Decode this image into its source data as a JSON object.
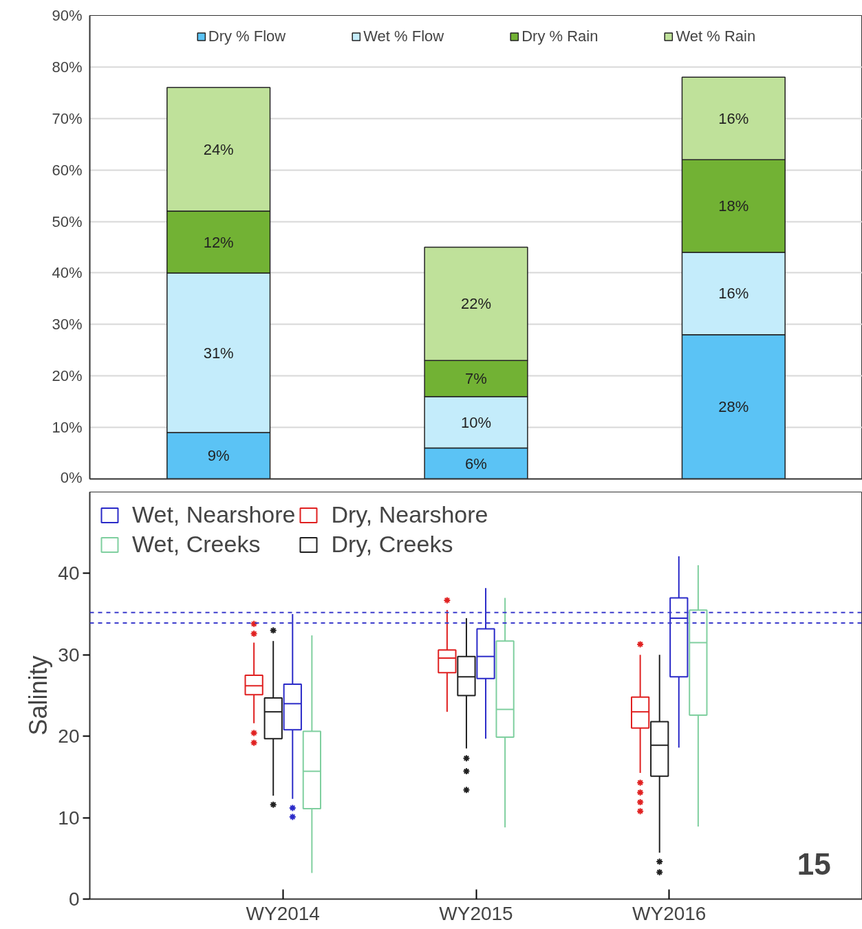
{
  "chart_data": [
    {
      "type": "bar",
      "stacked": true,
      "categories": [
        null,
        null,
        null
      ],
      "series": [
        {
          "name": "Dry % Flow",
          "color": "#5bc3f5",
          "values": [
            9,
            6,
            28
          ],
          "value_labels": [
            "9%",
            "6%",
            "28%"
          ]
        },
        {
          "name": "Wet % Flow",
          "color": "#c4ecfb",
          "values": [
            31,
            10,
            16
          ],
          "value_labels": [
            "31%",
            "10%",
            "16%"
          ]
        },
        {
          "name": "Dry % Rain",
          "color": "#72b234",
          "values": [
            12,
            7,
            18
          ],
          "value_labels": [
            "12%",
            "7%",
            "18%"
          ]
        },
        {
          "name": "Wet % Rain",
          "color": "#bfe19a",
          "values": [
            24,
            22,
            16
          ],
          "value_labels": [
            "24%",
            "22%",
            "16%"
          ]
        }
      ],
      "ylim": [
        0,
        90
      ],
      "yticks": [
        {
          "value": 0,
          "label": "0%"
        },
        {
          "value": 10,
          "label": "10%"
        },
        {
          "value": 20,
          "label": "20%"
        },
        {
          "value": 30,
          "label": "30%"
        },
        {
          "value": 40,
          "label": "40%"
        },
        {
          "value": 50,
          "label": "50%"
        },
        {
          "value": 60,
          "label": "60%"
        },
        {
          "value": 70,
          "label": "70%"
        },
        {
          "value": 80,
          "label": "80%"
        },
        {
          "value": 90,
          "label": "90%"
        }
      ],
      "grid": "y",
      "legend": "top",
      "tick_labels": "y"
    },
    {
      "type": "box",
      "ylabel": "Salinity",
      "categories": [
        "WY2014",
        "WY2015",
        "WY2016"
      ],
      "series": [
        {
          "name": "Dry, Nearshore",
          "color": "#e02020",
          "boxes": [
            {
              "low": 21.6,
              "q1": 25.1,
              "median": 26.2,
              "q3": 27.5,
              "high": 31.5,
              "outliers": [
                32.6,
                33.8,
                20.4,
                19.2
              ]
            },
            {
              "low": 23.0,
              "q1": 27.8,
              "median": 29.6,
              "q3": 30.6,
              "high": 35.5,
              "outliers": [
                36.7
              ]
            },
            {
              "low": 15.5,
              "q1": 21.0,
              "median": 23.0,
              "q3": 24.8,
              "high": 30.0,
              "outliers": [
                31.3,
                14.3,
                13.1,
                11.9,
                10.8
              ]
            }
          ]
        },
        {
          "name": "Dry, Creeks",
          "color": "#202020",
          "boxes": [
            {
              "low": 12.7,
              "q1": 19.7,
              "median": 23.0,
              "q3": 24.7,
              "high": 31.7,
              "outliers": [
                33.0,
                11.6
              ]
            },
            {
              "low": 18.5,
              "q1": 25.0,
              "median": 27.3,
              "q3": 29.8,
              "high": 34.5,
              "outliers": [
                17.3,
                15.7,
                13.4
              ]
            },
            {
              "low": 5.7,
              "q1": 15.1,
              "median": 18.9,
              "q3": 21.8,
              "high": 30.0,
              "outliers": [
                4.6,
                3.3
              ]
            }
          ]
        },
        {
          "name": "Wet, Nearshore",
          "color": "#2a2ac8",
          "boxes": [
            {
              "low": 12.3,
              "q1": 20.8,
              "median": 24.0,
              "q3": 26.4,
              "high": 35.0,
              "outliers": [
                11.2,
                10.1
              ]
            },
            {
              "low": 19.7,
              "q1": 27.1,
              "median": 29.8,
              "q3": 33.2,
              "high": 38.2
            },
            {
              "low": 18.6,
              "q1": 27.3,
              "median": 34.5,
              "q3": 37.0,
              "high": 42.1
            }
          ]
        },
        {
          "name": "Wet, Creeks",
          "color": "#7fcf9f",
          "boxes": [
            {
              "low": 3.2,
              "q1": 11.1,
              "median": 15.7,
              "q3": 20.6,
              "high": 32.4
            },
            {
              "low": 8.8,
              "q1": 19.9,
              "median": 23.3,
              "q3": 31.7,
              "high": 37.0
            },
            {
              "low": 8.9,
              "q1": 22.6,
              "median": 31.5,
              "q3": 35.5,
              "high": 41.0
            }
          ]
        }
      ],
      "ylim": [
        0,
        50
      ],
      "yticks": [
        0,
        10,
        20,
        30,
        40
      ],
      "ref_lines": [
        {
          "axis": "y",
          "value": 35.2,
          "color": "#3c3ccc",
          "line_style": "dashed"
        },
        {
          "axis": "y",
          "value": 33.9,
          "color": "#3c3ccc",
          "line_style": "dashed"
        }
      ],
      "grid": false,
      "legend": "top left",
      "marker": "star",
      "annotations": [
        "15"
      ]
    }
  ]
}
